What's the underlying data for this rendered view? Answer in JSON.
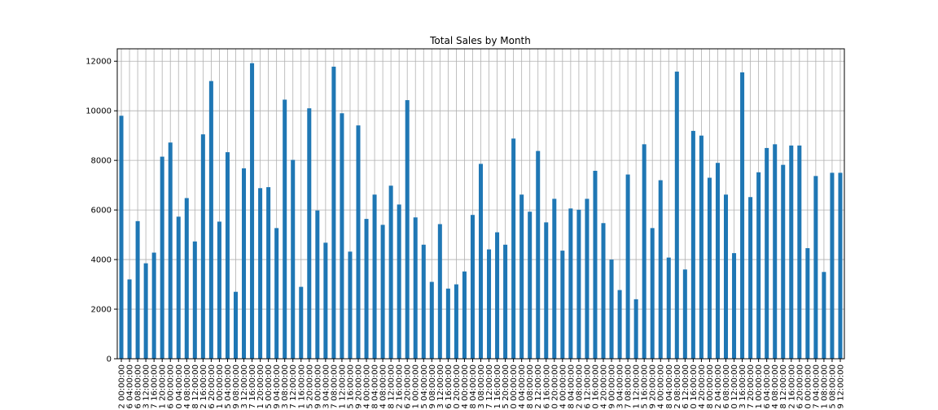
{
  "chart_data": {
    "type": "bar",
    "title": "Total Sales by Month",
    "xlabel": "",
    "ylabel": "",
    "ylim": [
      0,
      12500
    ],
    "yticks": [
      0,
      2000,
      4000,
      6000,
      8000,
      10000,
      12000
    ],
    "grid": true,
    "bar_color": "#1f77b4",
    "categories": [
      "2 00:00:00",
      "6 04:00:00",
      "6 08:00:00",
      "3 12:00:00",
      "7 16:00:00",
      "1 20:00:00",
      "6 00:00:00",
      "0 04:00:00",
      "4 08:00:00",
      "8 12:00:00",
      "2 16:00:00",
      "6 20:00:00",
      "1 00:00:00",
      "5 04:00:00",
      "9 08:00:00",
      "3 12:00:00",
      "7 16:00:00",
      "1 20:00:00",
      "5 00:00:00",
      "9 04:00:00",
      "3 08:00:00",
      "7 12:00:00",
      "1 16:00:00",
      "5 20:00:00",
      "9 00:00:00",
      "3 04:00:00",
      "7 08:00:00",
      "1 12:00:00",
      "5 16:00:00",
      "9 20:00:00",
      "4 00:00:00",
      "8 04:00:00",
      "4 08:00:00",
      "8 12:00:00",
      "2 16:00:00",
      "6 20:00:00",
      "1 00:00:00",
      "5 04:00:00",
      "9 08:00:00",
      "3 12:00:00",
      "6 16:00:00",
      "0 20:00:00",
      "4 00:00:00",
      "8 04:00:00",
      "3 08:00:00",
      "7 12:00:00",
      "1 16:00:00",
      "5 20:00:00",
      "0 00:00:00",
      "4 04:00:00",
      "8 08:00:00",
      "2 12:00:00",
      "6 16:00:00",
      "0 20:00:00",
      "4 00:00:00",
      "8 04:00:00",
      "2 08:00:00",
      "6 12:00:00",
      "0 16:00:00",
      "4 20:00:00",
      "9 00:00:00",
      "3 04:00:00",
      "7 08:00:00",
      "1 12:00:00",
      "5 16:00:00",
      "9 20:00:00",
      "4 00:00:00",
      "8 04:00:00",
      "2 08:00:00",
      "6 12:00:00",
      "0 16:00:00",
      "4 20:00:00",
      "8 00:00:00",
      "2 04:00:00",
      "6 08:00:00",
      "0 12:00:00",
      "3 16:00:00",
      "7 20:00:00",
      "1 00:00:00",
      "6 04:00:00",
      "4 08:00:00",
      "8 12:00:00",
      "2 16:00:00",
      "6 20:00:00",
      "0 00:00:00",
      "7 04:00:00",
      "1 08:00:00",
      "5 08:00:00",
      "9 12:00:00"
    ],
    "values": [
      9800,
      3200,
      5550,
      3850,
      4280,
      8150,
      8720,
      5730,
      6480,
      4730,
      9050,
      11200,
      5530,
      8330,
      2700,
      7680,
      11920,
      6880,
      6920,
      5270,
      10450,
      8020,
      2900,
      10100,
      5980,
      4680,
      11780,
      9900,
      4320,
      9410,
      5640,
      6620,
      5400,
      6980,
      6220,
      10430,
      5700,
      4600,
      3100,
      5430,
      2830,
      3000,
      3520,
      5800,
      7860,
      4410,
      5100,
      4600,
      8880,
      6620,
      5930,
      8380,
      5500,
      6450,
      4360,
      6060,
      6010,
      6450,
      7580,
      5470,
      4000,
      2770,
      7430,
      2400,
      8650,
      5270,
      7200,
      4080,
      11580,
      3600,
      9190,
      9000,
      7300,
      7900,
      6620,
      4260,
      11550,
      6520,
      7520,
      8500,
      8650,
      7820,
      8600,
      8600,
      4460,
      7370,
      3500,
      7500,
      7500
    ]
  }
}
